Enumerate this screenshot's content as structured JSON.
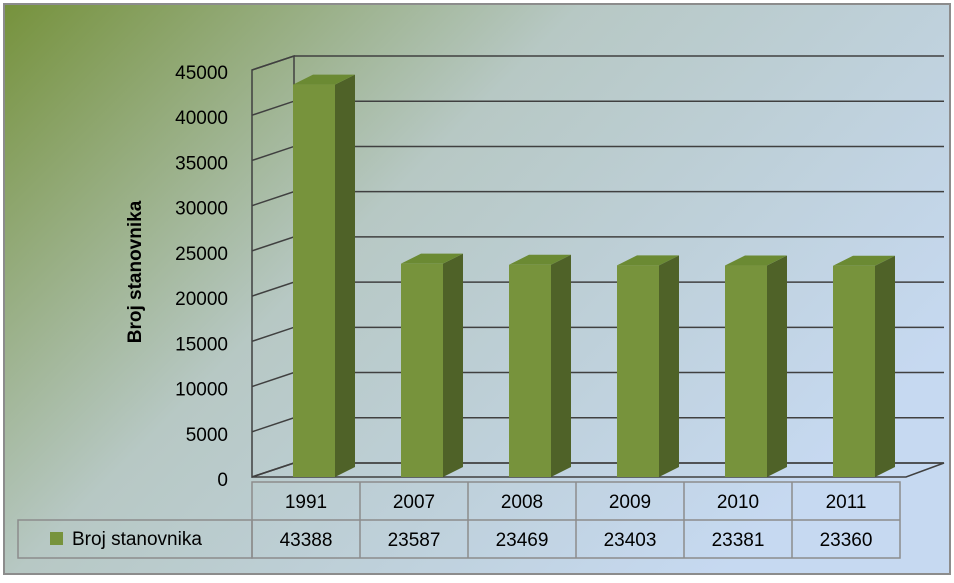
{
  "chart_data": {
    "type": "bar3d",
    "y_label": "Broj stanovnika",
    "categories": [
      "1991",
      "2007",
      "2008",
      "2009",
      "2010",
      "2011"
    ],
    "series": [
      {
        "name": "Broj stanovnika",
        "color": "#77933c",
        "values": [
          43388,
          23587,
          23469,
          23403,
          23381,
          23360
        ]
      }
    ],
    "ylim": [
      0,
      45000
    ],
    "yticks": [
      0,
      5000,
      10000,
      15000,
      20000,
      25000,
      30000,
      35000,
      40000,
      45000
    ],
    "grid": true,
    "data_table": true
  }
}
